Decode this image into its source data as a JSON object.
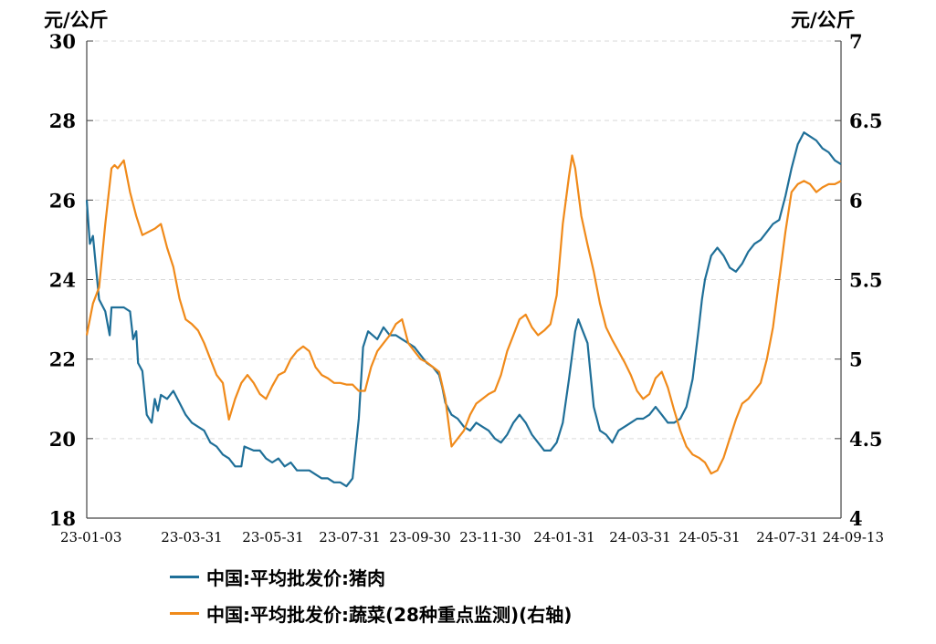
{
  "chart_data": {
    "type": "line",
    "left_unit": "元/公斤",
    "right_unit": "元/公斤",
    "x_ticks": [
      "23-01-03",
      "23-03-31",
      "23-05-31",
      "23-07-31",
      "23-09-30",
      "23-11-30",
      "24-01-31",
      "24-03-31",
      "24-05-31",
      "24-07-31",
      "24-09-13"
    ],
    "y_left": {
      "min": 18,
      "max": 30,
      "ticks": [
        "18",
        "20",
        "22",
        "24",
        "26",
        "28",
        "30"
      ]
    },
    "y_right": {
      "min": 4,
      "max": 7,
      "ticks": [
        "4",
        "4.5",
        "5",
        "5.5",
        "6",
        "6.5",
        "7"
      ]
    },
    "grid": true,
    "series": [
      {
        "name": "中国:平均批发价:猪肉",
        "axis": "left",
        "color": "#1f6f98",
        "points": [
          [
            0,
            26.0
          ],
          [
            0.5,
            24.9
          ],
          [
            1,
            25.1
          ],
          [
            2,
            23.5
          ],
          [
            3,
            23.2
          ],
          [
            3.7,
            22.6
          ],
          [
            4,
            23.3
          ],
          [
            6,
            23.3
          ],
          [
            7,
            23.2
          ],
          [
            7.5,
            22.5
          ],
          [
            8,
            22.7
          ],
          [
            8.3,
            21.9
          ],
          [
            9,
            21.7
          ],
          [
            9.7,
            20.6
          ],
          [
            10.5,
            20.4
          ],
          [
            11,
            21.0
          ],
          [
            11.5,
            20.7
          ],
          [
            12,
            21.1
          ],
          [
            13,
            21.0
          ],
          [
            14,
            21.2
          ],
          [
            15,
            20.9
          ],
          [
            16,
            20.6
          ],
          [
            17,
            20.4
          ],
          [
            18,
            20.3
          ],
          [
            19,
            20.2
          ],
          [
            20,
            19.9
          ],
          [
            21,
            19.8
          ],
          [
            22,
            19.6
          ],
          [
            23,
            19.5
          ],
          [
            24,
            19.3
          ],
          [
            25,
            19.3
          ],
          [
            25.5,
            19.8
          ],
          [
            27,
            19.7
          ],
          [
            28,
            19.7
          ],
          [
            29,
            19.5
          ],
          [
            30,
            19.4
          ],
          [
            31,
            19.5
          ],
          [
            32,
            19.3
          ],
          [
            33,
            19.4
          ],
          [
            34,
            19.2
          ],
          [
            35,
            19.2
          ],
          [
            36,
            19.2
          ],
          [
            37,
            19.1
          ],
          [
            38,
            19.0
          ],
          [
            39,
            19.0
          ],
          [
            40,
            18.9
          ],
          [
            41,
            18.9
          ],
          [
            42,
            18.8
          ],
          [
            43,
            19.0
          ],
          [
            44,
            20.5
          ],
          [
            44.7,
            22.3
          ],
          [
            45.5,
            22.7
          ],
          [
            47,
            22.5
          ],
          [
            48,
            22.8
          ],
          [
            49,
            22.6
          ],
          [
            50,
            22.6
          ],
          [
            51,
            22.5
          ],
          [
            52,
            22.4
          ],
          [
            53,
            22.3
          ],
          [
            54,
            22.1
          ],
          [
            55,
            21.9
          ],
          [
            56,
            21.8
          ],
          [
            57,
            21.6
          ],
          [
            57.5,
            21.3
          ],
          [
            58,
            20.9
          ],
          [
            59,
            20.6
          ],
          [
            60,
            20.5
          ],
          [
            61,
            20.3
          ],
          [
            62,
            20.2
          ],
          [
            63,
            20.4
          ],
          [
            64,
            20.3
          ],
          [
            65,
            20.2
          ],
          [
            66,
            20.0
          ],
          [
            67,
            19.9
          ],
          [
            68,
            20.1
          ],
          [
            69,
            20.4
          ],
          [
            70,
            20.6
          ],
          [
            71,
            20.4
          ],
          [
            72,
            20.1
          ],
          [
            73,
            19.9
          ],
          [
            74,
            19.7
          ],
          [
            75,
            19.7
          ],
          [
            76,
            19.9
          ],
          [
            77,
            20.4
          ],
          [
            78,
            21.5
          ],
          [
            79,
            22.7
          ],
          [
            79.5,
            23.0
          ],
          [
            80,
            22.8
          ],
          [
            81,
            22.4
          ],
          [
            82,
            20.8
          ],
          [
            83,
            20.2
          ],
          [
            84,
            20.1
          ],
          [
            85,
            19.9
          ],
          [
            86,
            20.2
          ],
          [
            87,
            20.3
          ],
          [
            88,
            20.4
          ],
          [
            89,
            20.5
          ],
          [
            90,
            20.5
          ],
          [
            91,
            20.6
          ],
          [
            92,
            20.8
          ],
          [
            93,
            20.6
          ],
          [
            94,
            20.4
          ],
          [
            95,
            20.4
          ],
          [
            96,
            20.5
          ],
          [
            97,
            20.8
          ],
          [
            98,
            21.5
          ],
          [
            99,
            22.8
          ],
          [
            99.5,
            23.5
          ],
          [
            100,
            24.0
          ],
          [
            101,
            24.6
          ],
          [
            102,
            24.8
          ],
          [
            103,
            24.6
          ],
          [
            104,
            24.3
          ],
          [
            105,
            24.2
          ],
          [
            106,
            24.4
          ],
          [
            107,
            24.7
          ],
          [
            108,
            24.9
          ],
          [
            109,
            25.0
          ],
          [
            110,
            25.2
          ],
          [
            111,
            25.4
          ],
          [
            112,
            25.5
          ],
          [
            113,
            26.1
          ],
          [
            114,
            26.8
          ],
          [
            115,
            27.4
          ],
          [
            116,
            27.7
          ],
          [
            117,
            27.6
          ],
          [
            118,
            27.5
          ],
          [
            119,
            27.3
          ],
          [
            120,
            27.2
          ],
          [
            121,
            27.0
          ],
          [
            122,
            26.9
          ]
        ]
      },
      {
        "name": "中国:平均批发价:蔬菜(28种重点监测)(右轴)",
        "axis": "right",
        "color": "#f08a1a",
        "points": [
          [
            0,
            5.15
          ],
          [
            1,
            5.35
          ],
          [
            2,
            5.45
          ],
          [
            3,
            5.85
          ],
          [
            4,
            6.2
          ],
          [
            4.5,
            6.22
          ],
          [
            5,
            6.2
          ],
          [
            6,
            6.25
          ],
          [
            7,
            6.05
          ],
          [
            8,
            5.9
          ],
          [
            9,
            5.78
          ],
          [
            10,
            5.8
          ],
          [
            11,
            5.82
          ],
          [
            12,
            5.85
          ],
          [
            13,
            5.7
          ],
          [
            14,
            5.58
          ],
          [
            15,
            5.38
          ],
          [
            16,
            5.25
          ],
          [
            17,
            5.22
          ],
          [
            18,
            5.18
          ],
          [
            19,
            5.1
          ],
          [
            20,
            5.0
          ],
          [
            21,
            4.9
          ],
          [
            22,
            4.85
          ],
          [
            23,
            4.62
          ],
          [
            24,
            4.75
          ],
          [
            25,
            4.85
          ],
          [
            26,
            4.9
          ],
          [
            27,
            4.85
          ],
          [
            28,
            4.78
          ],
          [
            29,
            4.75
          ],
          [
            30,
            4.83
          ],
          [
            31,
            4.9
          ],
          [
            32,
            4.92
          ],
          [
            33,
            5.0
          ],
          [
            34,
            5.05
          ],
          [
            35,
            5.08
          ],
          [
            36,
            5.05
          ],
          [
            37,
            4.95
          ],
          [
            38,
            4.9
          ],
          [
            39,
            4.88
          ],
          [
            40,
            4.85
          ],
          [
            41,
            4.85
          ],
          [
            42,
            4.84
          ],
          [
            43,
            4.84
          ],
          [
            44,
            4.8
          ],
          [
            45,
            4.8
          ],
          [
            46,
            4.95
          ],
          [
            47,
            5.05
          ],
          [
            48,
            5.1
          ],
          [
            49,
            5.15
          ],
          [
            50,
            5.22
          ],
          [
            51,
            5.25
          ],
          [
            52,
            5.1
          ],
          [
            53,
            5.05
          ],
          [
            54,
            5.0
          ],
          [
            55,
            4.98
          ],
          [
            56,
            4.95
          ],
          [
            57,
            4.92
          ],
          [
            58,
            4.75
          ],
          [
            59,
            4.45
          ],
          [
            60,
            4.5
          ],
          [
            61,
            4.55
          ],
          [
            62,
            4.65
          ],
          [
            63,
            4.72
          ],
          [
            64,
            4.75
          ],
          [
            65,
            4.78
          ],
          [
            66,
            4.8
          ],
          [
            67,
            4.9
          ],
          [
            68,
            5.05
          ],
          [
            69,
            5.15
          ],
          [
            70,
            5.25
          ],
          [
            71,
            5.28
          ],
          [
            72,
            5.2
          ],
          [
            73,
            5.15
          ],
          [
            74,
            5.18
          ],
          [
            75,
            5.22
          ],
          [
            76,
            5.4
          ],
          [
            77,
            5.85
          ],
          [
            78,
            6.15
          ],
          [
            78.5,
            6.28
          ],
          [
            79,
            6.2
          ],
          [
            80,
            5.9
          ],
          [
            81,
            5.72
          ],
          [
            82,
            5.55
          ],
          [
            83,
            5.35
          ],
          [
            84,
            5.2
          ],
          [
            85,
            5.12
          ],
          [
            86,
            5.05
          ],
          [
            87,
            4.98
          ],
          [
            88,
            4.9
          ],
          [
            89,
            4.8
          ],
          [
            90,
            4.75
          ],
          [
            91,
            4.78
          ],
          [
            92,
            4.88
          ],
          [
            93,
            4.92
          ],
          [
            94,
            4.82
          ],
          [
            95,
            4.68
          ],
          [
            96,
            4.55
          ],
          [
            97,
            4.45
          ],
          [
            98,
            4.4
          ],
          [
            99,
            4.38
          ],
          [
            100,
            4.35
          ],
          [
            101,
            4.28
          ],
          [
            102,
            4.3
          ],
          [
            103,
            4.38
          ],
          [
            104,
            4.5
          ],
          [
            105,
            4.62
          ],
          [
            106,
            4.72
          ],
          [
            107,
            4.75
          ],
          [
            108,
            4.8
          ],
          [
            109,
            4.85
          ],
          [
            110,
            5.0
          ],
          [
            111,
            5.2
          ],
          [
            112,
            5.5
          ],
          [
            113,
            5.8
          ],
          [
            114,
            6.05
          ],
          [
            115,
            6.1
          ],
          [
            116,
            6.12
          ],
          [
            117,
            6.1
          ],
          [
            118,
            6.05
          ],
          [
            119,
            6.08
          ],
          [
            120,
            6.1
          ],
          [
            121,
            6.1
          ],
          [
            122,
            6.12
          ]
        ]
      }
    ]
  }
}
